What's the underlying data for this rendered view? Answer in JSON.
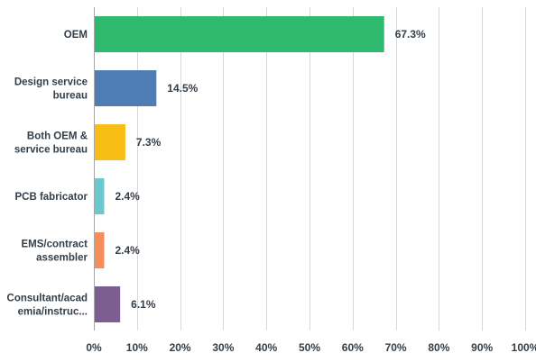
{
  "chart_data": {
    "type": "bar",
    "orientation": "horizontal",
    "categories": [
      [
        "OEM"
      ],
      [
        "Design service",
        "bureau"
      ],
      [
        "Both OEM &",
        "service bureau"
      ],
      [
        "PCB fabricator"
      ],
      [
        "EMS/contract",
        "assembler"
      ],
      [
        "Consultant/acad",
        "emia/instruc..."
      ]
    ],
    "values": [
      67.3,
      14.5,
      7.3,
      2.4,
      2.4,
      6.1
    ],
    "value_labels": [
      "67.3%",
      "14.5%",
      "7.3%",
      "2.4%",
      "2.4%",
      "6.1%"
    ],
    "colors": [
      "#2dba6e",
      "#507cb6",
      "#f9be15",
      "#6bc8cd",
      "#f58e5a",
      "#7d5e90"
    ],
    "xlim": [
      0,
      100
    ],
    "x_ticks": [
      0,
      10,
      20,
      30,
      40,
      50,
      60,
      70,
      80,
      90,
      100
    ],
    "x_tick_labels": [
      "0%",
      "10%",
      "20%",
      "30%",
      "40%",
      "50%",
      "60%",
      "70%",
      "80%",
      "90%",
      "100%"
    ],
    "grid": true,
    "title": "",
    "xlabel": "",
    "ylabel": ""
  }
}
